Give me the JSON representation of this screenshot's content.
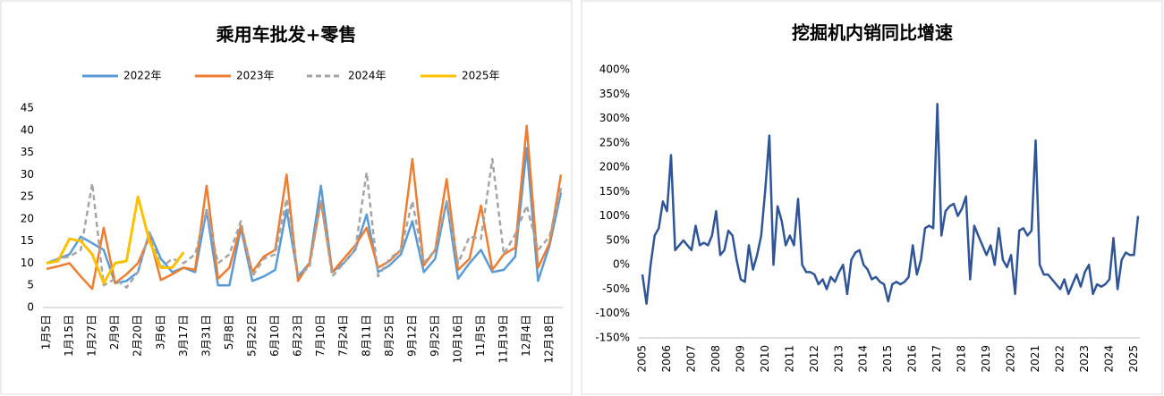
{
  "chart_data": [
    {
      "type": "line",
      "title": "乘用车批发+零售",
      "categories": [
        "1月5日",
        null,
        "1月15日",
        null,
        "1月27日",
        null,
        "2月9日",
        null,
        "2月20日",
        null,
        "3月6日",
        null,
        "3月17日",
        null,
        "3月31日",
        null,
        "5月8日",
        null,
        "5月22日",
        null,
        "6月10日",
        null,
        "6月23日",
        null,
        "7月10日",
        null,
        "7月24日",
        null,
        "8月11日",
        null,
        "8月25日",
        null,
        "9月12日",
        null,
        "9月25日",
        null,
        "10月16日",
        null,
        "11月5日",
        null,
        "11月19日",
        null,
        "12月4日",
        null,
        "12月18日",
        null
      ],
      "series": [
        {
          "name": "2022年",
          "color": "#5b9bd5",
          "values": [
            10,
            11,
            12,
            16,
            14.5,
            13,
            5.5,
            6,
            8,
            17,
            11,
            8,
            9,
            8,
            22,
            5,
            5,
            18,
            6,
            7,
            8.5,
            22,
            7,
            10,
            27.5,
            8,
            10,
            13,
            21,
            8,
            9.5,
            12,
            19.5,
            8,
            11,
            24,
            6.5,
            10,
            13,
            8,
            8.5,
            11.5,
            36,
            6,
            14,
            26
          ]
        },
        {
          "name": "2023年",
          "color": "#ed7d31",
          "values": [
            8.7,
            9.3,
            10,
            7,
            4.2,
            18,
            5.5,
            7.5,
            10,
            16,
            6.2,
            7.5,
            9,
            8.5,
            27.5,
            6.5,
            9,
            18.5,
            8,
            11.5,
            13,
            30,
            6,
            10,
            24,
            8,
            11,
            14,
            18,
            9,
            10.5,
            13,
            33.5,
            9.5,
            13,
            29,
            8.5,
            11,
            23,
            8.5,
            12,
            13.5,
            41,
            9,
            14.5,
            30
          ]
        },
        {
          "name": "2024年",
          "color": "#a5a5a5",
          "dashed": true,
          "values": [
            10,
            11,
            11.5,
            13,
            28,
            5,
            6.5,
            4.5,
            8,
            17,
            9,
            11,
            10,
            12,
            22,
            10,
            12,
            19.5,
            7,
            11,
            12,
            24.5,
            7.5,
            9,
            24,
            7,
            10,
            13,
            30.5,
            7,
            11,
            13,
            24,
            10,
            13,
            24,
            10,
            16,
            15.5,
            33.5,
            12,
            16.5,
            23,
            13,
            16,
            27
          ]
        },
        {
          "name": "2025年",
          "color": "#ffc000",
          "values": [
            10,
            10.5,
            15.5,
            15,
            12,
            5.5,
            10,
            10.5,
            25,
            15,
            9,
            9,
            12.5,
            null,
            null,
            null,
            null,
            null,
            null,
            null,
            null,
            null,
            null,
            null,
            null,
            null,
            null,
            null,
            null,
            null,
            null,
            null,
            null,
            null,
            null,
            null,
            null,
            null,
            null,
            null,
            null,
            null,
            null,
            null,
            null,
            null
          ]
        }
      ],
      "ylim": [
        0,
        45
      ],
      "yticks": [
        0,
        5,
        10,
        15,
        20,
        25,
        30,
        35,
        40,
        45
      ],
      "grid": false,
      "legend": "top"
    },
    {
      "type": "line",
      "title": "挖掘机内销同比增速",
      "categories": [
        "2005",
        null,
        null,
        null,
        null,
        null,
        "2006",
        null,
        null,
        null,
        null,
        null,
        "2007",
        null,
        null,
        null,
        null,
        null,
        "2008",
        null,
        null,
        null,
        null,
        null,
        "2009",
        null,
        null,
        null,
        null,
        null,
        "2010",
        null,
        null,
        null,
        null,
        null,
        "2011",
        null,
        null,
        null,
        null,
        null,
        "2012",
        null,
        null,
        null,
        null,
        null,
        "2013",
        null,
        null,
        null,
        null,
        null,
        "2014",
        null,
        null,
        null,
        null,
        null,
        "2015",
        null,
        null,
        null,
        null,
        null,
        "2016",
        null,
        null,
        null,
        null,
        null,
        "2017",
        null,
        null,
        null,
        null,
        null,
        "2018",
        null,
        null,
        null,
        null,
        null,
        "2019",
        null,
        null,
        null,
        null,
        null,
        "2020",
        null,
        null,
        null,
        null,
        null,
        "2021",
        null,
        null,
        null,
        null,
        null,
        "2022",
        null,
        null,
        null,
        null,
        null,
        "2023",
        null,
        null,
        null,
        null,
        null,
        "2024",
        null,
        null,
        null,
        null,
        null,
        "2025",
        null
      ],
      "series": [
        {
          "color": "#2f5597",
          "values": [
            -20,
            -80,
            0,
            60,
            75,
            130,
            110,
            225,
            30,
            40,
            50,
            40,
            30,
            80,
            40,
            45,
            40,
            60,
            110,
            20,
            30,
            70,
            60,
            10,
            -30,
            -35,
            40,
            -10,
            20,
            60,
            155,
            265,
            0,
            120,
            90,
            40,
            60,
            40,
            135,
            0,
            -15,
            -15,
            -20,
            -40,
            -30,
            -50,
            -25,
            -35,
            -15,
            0,
            -60,
            10,
            25,
            30,
            0,
            -10,
            -30,
            -25,
            -35,
            -40,
            -75,
            -40,
            -35,
            -40,
            -35,
            -25,
            40,
            -20,
            10,
            75,
            80,
            75,
            330,
            60,
            110,
            120,
            125,
            100,
            115,
            140,
            -30,
            80,
            60,
            40,
            20,
            40,
            0,
            75,
            10,
            -5,
            20,
            -60,
            70,
            75,
            60,
            70,
            255,
            0,
            -20,
            -20,
            -30,
            -40,
            -50,
            -30,
            -60,
            -40,
            -20,
            -45,
            -15,
            0,
            -60,
            -40,
            -45,
            -40,
            -30,
            55,
            -50,
            10,
            25,
            20,
            20,
            100
          ]
        }
      ],
      "ylim": [
        -150,
        400
      ],
      "yticks": [
        {
          "value": -150,
          "label": "-150%"
        },
        {
          "value": -100,
          "label": "-100%"
        },
        {
          "value": -50,
          "label": "-50%"
        },
        {
          "value": 0,
          "label": "0%"
        },
        {
          "value": 50,
          "label": "50%"
        },
        {
          "value": 100,
          "label": "100%"
        },
        {
          "value": 150,
          "label": "150%"
        },
        {
          "value": 200,
          "label": "200%"
        },
        {
          "value": 250,
          "label": "250%"
        },
        {
          "value": 300,
          "label": "300%"
        },
        {
          "value": 350,
          "label": "350%"
        },
        {
          "value": 400,
          "label": "400%"
        }
      ],
      "grid": false
    }
  ]
}
